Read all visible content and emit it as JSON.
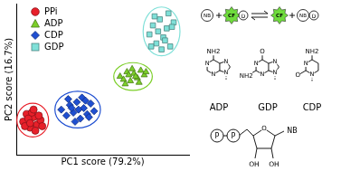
{
  "chart_data": {
    "type": "scatter",
    "x_label": "PC1 score (79.2%)",
    "y_label": "PC2 score (16.7%)",
    "xlim": [
      0,
      100
    ],
    "ylim": [
      0,
      100
    ],
    "tick_labels": false,
    "grid": false,
    "legend": "upper left",
    "series": [
      {
        "name": "PPi",
        "color": "#e8202a",
        "marker": "circle",
        "x": [
          4,
          6,
          8,
          10,
          12,
          14,
          5,
          7,
          9,
          11,
          13,
          8,
          10,
          15
        ],
        "values": [
          22,
          27,
          18,
          25,
          20,
          23,
          19,
          24,
          28,
          16,
          26,
          21,
          30,
          19
        ]
      },
      {
        "name": "ADP",
        "color": "#7ccf29",
        "marker": "triangle",
        "x": [
          60,
          62,
          64,
          66,
          68,
          70,
          72,
          74,
          63,
          67,
          71,
          75,
          69,
          65
        ],
        "values": [
          52,
          50,
          55,
          49,
          54,
          51,
          56,
          53,
          47,
          57,
          48,
          55,
          52,
          53
        ]
      },
      {
        "name": "CDP",
        "color": "#1f4fd1",
        "marker": "diamond",
        "x": [
          26,
          29,
          31,
          33,
          35,
          37,
          39,
          41,
          43,
          45,
          30,
          34,
          38,
          42,
          36,
          32,
          40
        ],
        "values": [
          30,
          26,
          33,
          28,
          35,
          24,
          31,
          27,
          34,
          29,
          37,
          22,
          38,
          25,
          30,
          31,
          36
        ]
      },
      {
        "name": "GDP",
        "color": "#7fe0d8",
        "marker": "square",
        "x": [
          77,
          79,
          81,
          83,
          85,
          87,
          89,
          91,
          80,
          84,
          88,
          82,
          86,
          90,
          78
        ],
        "values": [
          80,
          86,
          74,
          90,
          78,
          84,
          72,
          88,
          92,
          70,
          94,
          82,
          76,
          85,
          72
        ]
      }
    ]
  },
  "scheme": {
    "base": "NB",
    "sensor": "CF",
    "dye": "D"
  },
  "structures": [
    {
      "name": "ADP",
      "kind": "purine",
      "substituent_top": "NH2",
      "ring_atoms": [
        "N",
        "N",
        "N",
        "N"
      ]
    },
    {
      "name": "GDP",
      "kind": "purine",
      "substituent_top": "O",
      "substituent_left": "NH2",
      "ring_atoms": [
        "N",
        "N",
        "N",
        "N"
      ]
    },
    {
      "name": "CDP",
      "kind": "pyrimidine",
      "substituent_top": "NH2",
      "substituent_left": "O",
      "ring_atoms": [
        "N",
        "N"
      ]
    }
  ],
  "nucleotide": {
    "phosphate": "P",
    "ring_oxygen": "O",
    "base": "NB",
    "hydroxyl": "OH"
  }
}
